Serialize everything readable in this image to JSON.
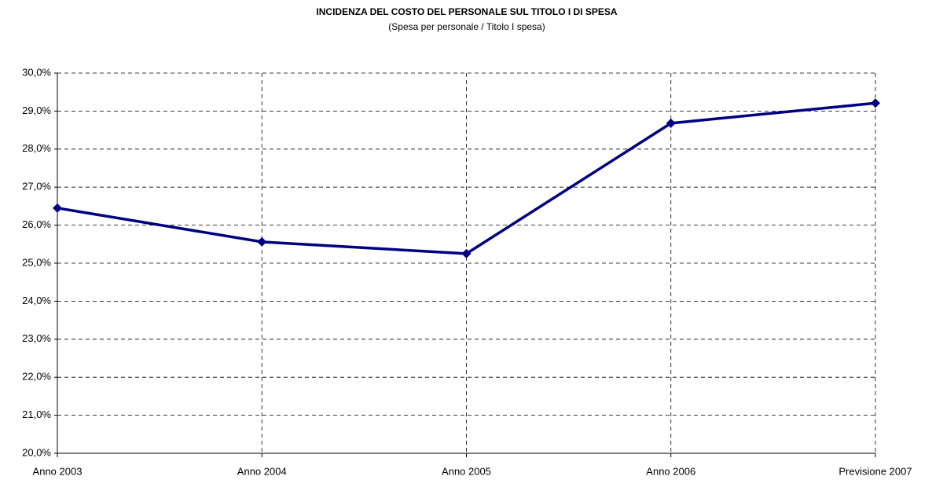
{
  "chart_data": {
    "type": "line",
    "title": "INCIDENZA DEL COSTO DEL PERSONALE SUL TITOLO I DI SPESA",
    "subtitle": "(Spesa per personale / Titolo I spesa)",
    "categories": [
      "Anno 2003",
      "Anno 2004",
      "Anno 2005",
      "Anno 2006",
      "Previsione 2007"
    ],
    "series": [
      {
        "name": "Spesa per personale / Titolo I spesa",
        "color": "#000080",
        "values": [
          26.45,
          25.56,
          25.25,
          28.68,
          29.21
        ]
      }
    ],
    "ylim": [
      20,
      30
    ],
    "yticks": [
      {
        "value": 20,
        "label": "20,0%"
      },
      {
        "value": 21,
        "label": "21,0%"
      },
      {
        "value": 22,
        "label": "22,0%"
      },
      {
        "value": 23,
        "label": "23,0%"
      },
      {
        "value": 24,
        "label": "24,0%"
      },
      {
        "value": 25,
        "label": "25,0%"
      },
      {
        "value": 26,
        "label": "26,0%"
      },
      {
        "value": 27,
        "label": "27,0%"
      },
      {
        "value": 28,
        "label": "28,0%"
      },
      {
        "value": 29,
        "label": "29,0%"
      },
      {
        "value": 30,
        "label": "30,0%"
      }
    ],
    "grid": true
  }
}
